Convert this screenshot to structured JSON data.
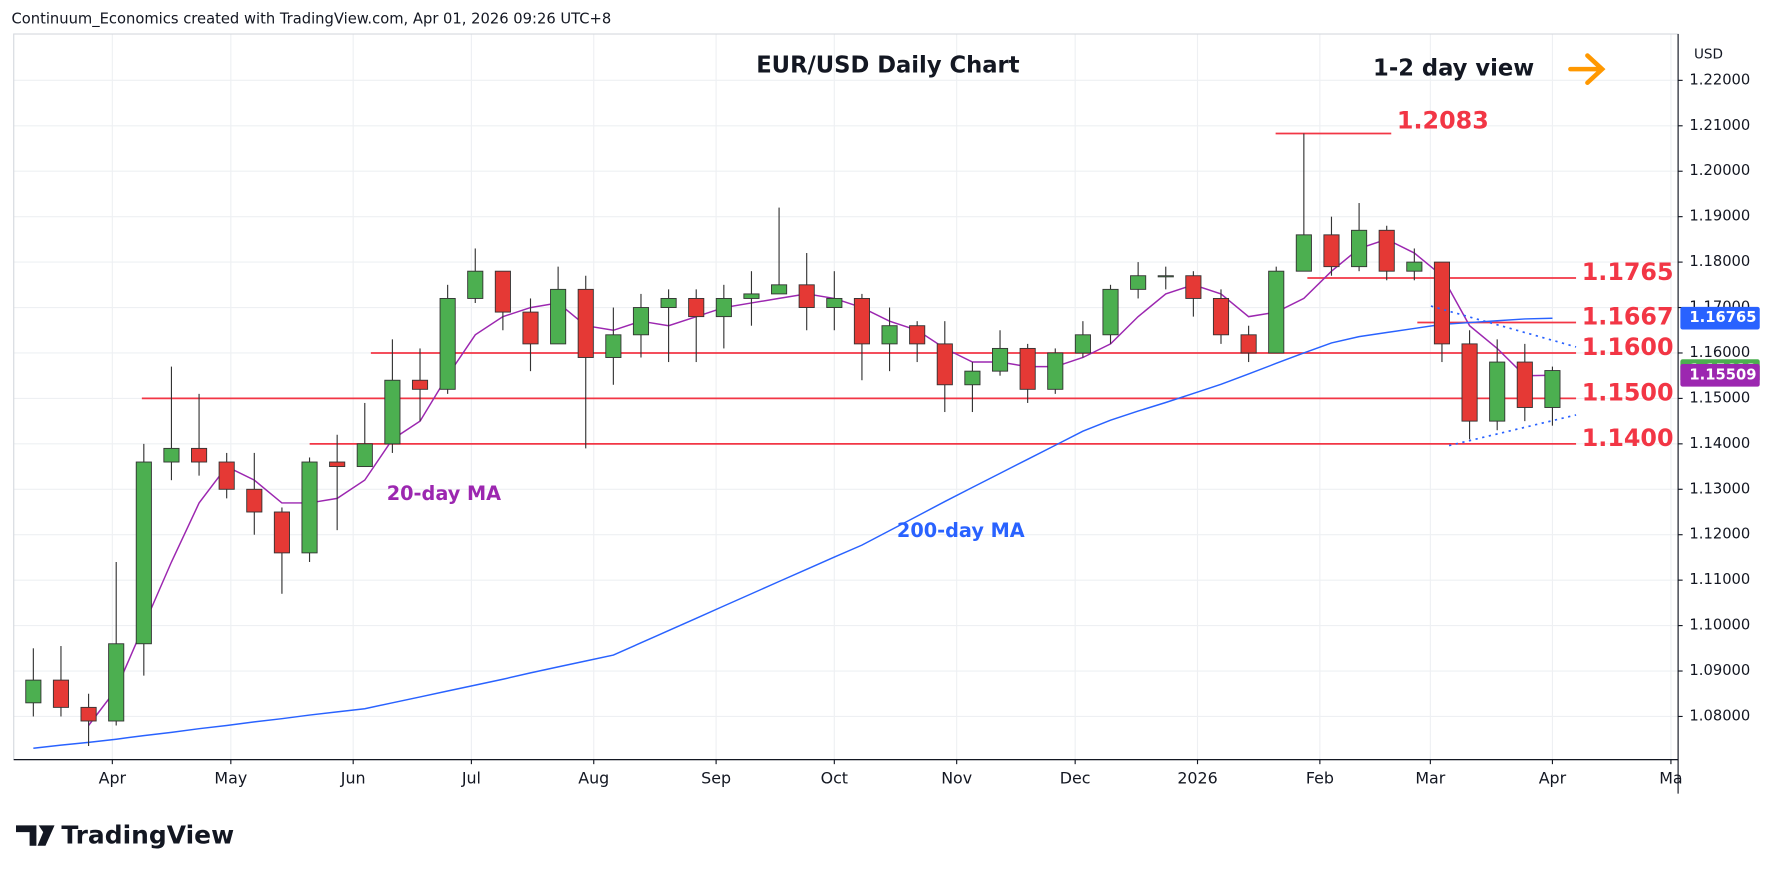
{
  "header": {
    "attribution": "Continuum_Economics created with TradingView.com, Apr 01, 2026 09:26 UTC+8"
  },
  "chart_data": {
    "type": "candlestick",
    "title": "EUR/USD Daily Chart",
    "currency": "USD",
    "annotation": "1-2 day view",
    "x": [
      0.71,
      1.71,
      2.71,
      3.71,
      4.71,
      5.71,
      6.71,
      7.71,
      8.71,
      9.71,
      10.71,
      11.71,
      12.71,
      13.71,
      14.71,
      15.71,
      16.71,
      17.71,
      18.71,
      19.71,
      20.71,
      21.71,
      22.71,
      23.71,
      24.71,
      25.71,
      26.71,
      27.71,
      28.71,
      29.71,
      30.71,
      31.71,
      32.71,
      33.71,
      34.71,
      35.71,
      36.71,
      37.71,
      38.71,
      39.71,
      40.71,
      41.71,
      42.71,
      43.71,
      44.71,
      45.71,
      46.71,
      47.71,
      48.71,
      49.71,
      50.71,
      51.71,
      52.71,
      53.71,
      54.71,
      55.71
    ],
    "open": [
      1.083,
      1.088,
      1.082,
      1.079,
      1.096,
      1.136,
      1.139,
      1.136,
      1.13,
      1.125,
      1.116,
      1.136,
      1.135,
      1.14,
      1.154,
      1.152,
      1.172,
      1.178,
      1.169,
      1.162,
      1.174,
      1.159,
      1.164,
      1.17,
      1.172,
      1.168,
      1.172,
      1.173,
      1.175,
      1.17,
      1.172,
      1.162,
      1.166,
      1.162,
      1.153,
      1.156,
      1.161,
      1.152,
      1.16,
      1.164,
      1.174,
      1.177,
      1.177,
      1.172,
      1.164,
      1.16,
      1.178,
      1.186,
      1.179,
      1.187,
      1.178,
      1.18,
      1.162,
      1.145,
      1.158,
      1.148
    ],
    "high": [
      1.095,
      1.0955,
      1.085,
      1.114,
      1.14,
      1.157,
      1.151,
      1.138,
      1.138,
      1.126,
      1.137,
      1.142,
      1.149,
      1.163,
      1.161,
      1.175,
      1.183,
      1.178,
      1.172,
      1.179,
      1.177,
      1.17,
      1.173,
      1.174,
      1.174,
      1.175,
      1.178,
      1.192,
      1.182,
      1.178,
      1.173,
      1.17,
      1.167,
      1.167,
      1.158,
      1.165,
      1.162,
      1.161,
      1.167,
      1.175,
      1.18,
      1.179,
      1.178,
      1.174,
      1.166,
      1.179,
      1.2083,
      1.19,
      1.193,
      1.188,
      1.183,
      1.18,
      1.165,
      1.163,
      1.162,
      1.157
    ],
    "low": [
      1.08,
      1.08,
      1.0735,
      1.078,
      1.089,
      1.132,
      1.133,
      1.128,
      1.12,
      1.107,
      1.114,
      1.121,
      1.135,
      1.138,
      1.145,
      1.151,
      1.171,
      1.165,
      1.156,
      1.162,
      1.139,
      1.153,
      1.159,
      1.158,
      1.158,
      1.161,
      1.166,
      1.173,
      1.165,
      1.165,
      1.154,
      1.156,
      1.158,
      1.147,
      1.147,
      1.155,
      1.149,
      1.151,
      1.159,
      1.162,
      1.172,
      1.174,
      1.168,
      1.162,
      1.158,
      1.16,
      1.178,
      1.177,
      1.178,
      1.176,
      1.176,
      1.158,
      1.141,
      1.143,
      1.145,
      1.144
    ],
    "close": [
      1.088,
      1.082,
      1.079,
      1.096,
      1.136,
      1.139,
      1.136,
      1.13,
      1.125,
      1.116,
      1.136,
      1.135,
      1.14,
      1.154,
      1.152,
      1.172,
      1.178,
      1.169,
      1.162,
      1.174,
      1.159,
      1.164,
      1.17,
      1.172,
      1.168,
      1.172,
      1.173,
      1.175,
      1.17,
      1.172,
      1.162,
      1.166,
      1.162,
      1.153,
      1.156,
      1.161,
      1.152,
      1.16,
      1.164,
      1.174,
      1.177,
      1.177,
      1.172,
      1.164,
      1.16,
      1.178,
      1.186,
      1.179,
      1.187,
      1.178,
      1.18,
      1.162,
      1.145,
      1.158,
      1.148,
      1.15613
    ],
    "up_color": "#4caf50",
    "down_color": "#e53935",
    "series": [
      {
        "name": "20-day MA",
        "color": "#9c27b0",
        "values": [
          null,
          null,
          1.078,
          1.086,
          1.1,
          1.114,
          1.127,
          1.135,
          1.132,
          1.127,
          1.127,
          1.128,
          1.132,
          1.141,
          1.145,
          1.155,
          1.164,
          1.168,
          1.17,
          1.171,
          1.166,
          1.165,
          1.167,
          1.166,
          1.168,
          1.17,
          1.171,
          1.172,
          1.173,
          1.172,
          1.17,
          1.167,
          1.165,
          1.161,
          1.158,
          1.158,
          1.157,
          1.157,
          1.159,
          1.162,
          1.168,
          1.173,
          1.175,
          1.173,
          1.168,
          1.169,
          1.172,
          1.178,
          1.183,
          1.185,
          1.182,
          1.177,
          1.166,
          1.161,
          1.155,
          1.15509
        ]
      },
      {
        "name": "200-day MA",
        "color": "#2962ff",
        "values": [
          1.073,
          1.0737,
          1.0743,
          1.075,
          1.0758,
          1.0765,
          1.0773,
          1.078,
          1.0788,
          1.0795,
          1.0803,
          1.081,
          1.0817,
          1.083,
          1.0843,
          1.0856,
          1.0869,
          1.0882,
          1.0896,
          1.0909,
          1.0922,
          1.0935,
          1.0962,
          1.0989,
          1.1016,
          1.1043,
          1.107,
          1.1097,
          1.1124,
          1.1151,
          1.1177,
          1.1209,
          1.1241,
          1.1273,
          1.1304,
          1.1335,
          1.1366,
          1.1397,
          1.1428,
          1.1452,
          1.1472,
          1.1491,
          1.1511,
          1.1531,
          1.1554,
          1.1577,
          1.16,
          1.1622,
          1.1636,
          1.1645,
          1.1654,
          1.1663,
          1.1667,
          1.1671,
          1.1675,
          1.16765
        ]
      }
    ],
    "levels": [
      1.2083,
      {
        "value": 1.1765,
        "label": "1.1765"
      },
      {
        "value": 1.1667,
        "label": "1.1667"
      },
      {
        "value": 1.16,
        "label": "1.1600"
      },
      {
        "value": 1.15,
        "label": "1.1500"
      },
      {
        "value": 1.14,
        "label": "1.1400"
      }
    ],
    "level_color": "#f23645",
    "price_tags": [
      {
        "value": 1.16765,
        "color": "#2962ff"
      },
      {
        "value": 1.15613,
        "color": "#4caf50"
      },
      {
        "value": 1.15509,
        "color": "#9c27b0"
      }
    ],
    "xlim": [
      0,
      60.26
    ],
    "xticks": [
      {
        "value": 3.57,
        "label": "Apr"
      },
      {
        "value": 7.86,
        "label": "May"
      },
      {
        "value": 12.29,
        "label": "Jun"
      },
      {
        "value": 16.57,
        "label": "Jul"
      },
      {
        "value": 21.0,
        "label": "Aug"
      },
      {
        "value": 25.43,
        "label": "Sep"
      },
      {
        "value": 29.71,
        "label": "Oct"
      },
      {
        "value": 34.14,
        "label": "Nov"
      },
      {
        "value": 38.43,
        "label": "Dec"
      },
      {
        "value": 42.86,
        "label": "2026"
      },
      {
        "value": 47.29,
        "label": "Feb"
      },
      {
        "value": 51.29,
        "label": "Mar"
      },
      {
        "value": 55.71,
        "label": "Apr"
      },
      {
        "value": 60.0,
        "label": "Ma"
      }
    ],
    "ylim": [
      1.0705,
      1.2302
    ],
    "yticks": [
      {
        "value": 1.08,
        "label": "1.08000"
      },
      {
        "value": 1.09,
        "label": "1.09000"
      },
      {
        "value": 1.1,
        "label": "1.10000"
      },
      {
        "value": 1.11,
        "label": "1.11000"
      },
      {
        "value": 1.12,
        "label": "1.12000"
      },
      {
        "value": 1.13,
        "label": "1.13000"
      },
      {
        "value": 1.14,
        "label": "1.14000"
      },
      {
        "value": 1.15,
        "label": "1.15000"
      },
      {
        "value": 1.16,
        "label": "1.16000"
      },
      {
        "value": 1.17,
        "label": "1.17000"
      },
      {
        "value": 1.18,
        "label": "1.18000"
      },
      {
        "value": 1.19,
        "label": "1.19000"
      },
      {
        "value": 1.2,
        "label": "1.20000"
      },
      {
        "value": 1.21,
        "label": "1.21000"
      },
      {
        "value": 1.22,
        "label": "1.22000"
      }
    ],
    "grid": true
  },
  "footer": {
    "logo": "TradingView"
  }
}
